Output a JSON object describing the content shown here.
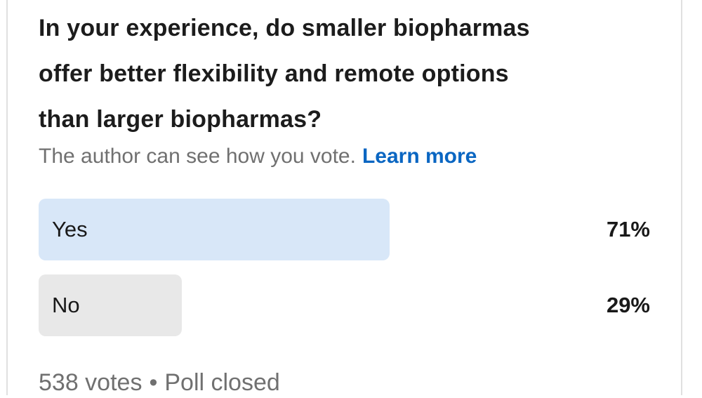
{
  "poll": {
    "question_lines": [
      "In your experience, do smaller biopharmas",
      "offer better flexibility and remote options",
      "than larger biopharmas?"
    ],
    "disclosure": {
      "text": "The author can see how you vote.",
      "link_label": "Learn more"
    },
    "options": [
      {
        "label": "Yes",
        "percent": 71,
        "percent_label": "71%",
        "bar_color": "#d8e7f8"
      },
      {
        "label": "No",
        "percent": 29,
        "percent_label": "29%",
        "bar_color": "#e8e8e8"
      }
    ],
    "footer": {
      "votes": "538 votes",
      "separator": "•",
      "status": "Poll closed"
    },
    "colors": {
      "link_blue": "#0a66c2",
      "question_text": "#1c1c1c",
      "muted_text": "#707070",
      "card_border": "#e0e0e0",
      "yes_bar": "#d8e7f8",
      "no_bar": "#e8e8e8"
    }
  }
}
